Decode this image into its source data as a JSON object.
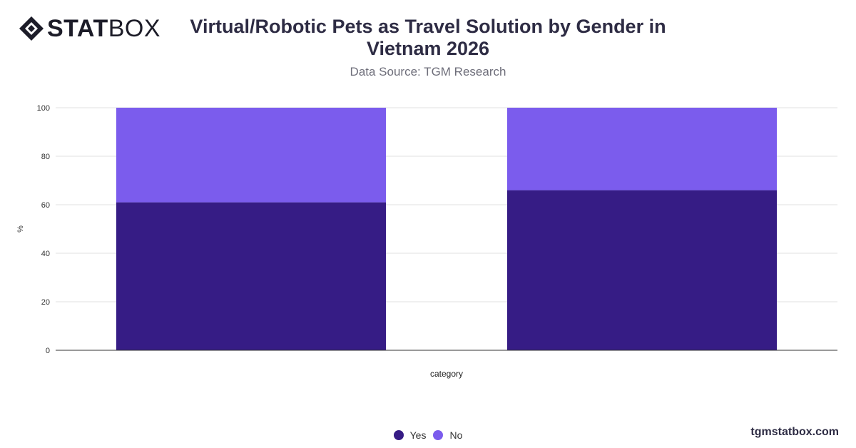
{
  "brand": {
    "logo_bold": "STAT",
    "logo_thin": "BOX",
    "footer": "tgmstatbox.com"
  },
  "title": "Virtual/Robotic Pets as Travel Solution by Gender in Vietnam 2026",
  "subtitle": "Data Source: TGM Research",
  "colors": {
    "yes": "#361c85",
    "no": "#7b5ced",
    "grid": "#e2e2e2",
    "axis": "#333333"
  },
  "chart_data": {
    "type": "bar",
    "stacked": true,
    "categories": [
      "",
      ""
    ],
    "series": [
      {
        "name": "Yes",
        "values": [
          61,
          66
        ]
      },
      {
        "name": "No",
        "values": [
          39,
          34
        ]
      }
    ],
    "xlabel": "category",
    "ylabel": "%",
    "ylim": [
      0,
      100
    ],
    "yticks": [
      0,
      20,
      40,
      60,
      80,
      100
    ],
    "grid": true,
    "legend": "bottom-center"
  }
}
